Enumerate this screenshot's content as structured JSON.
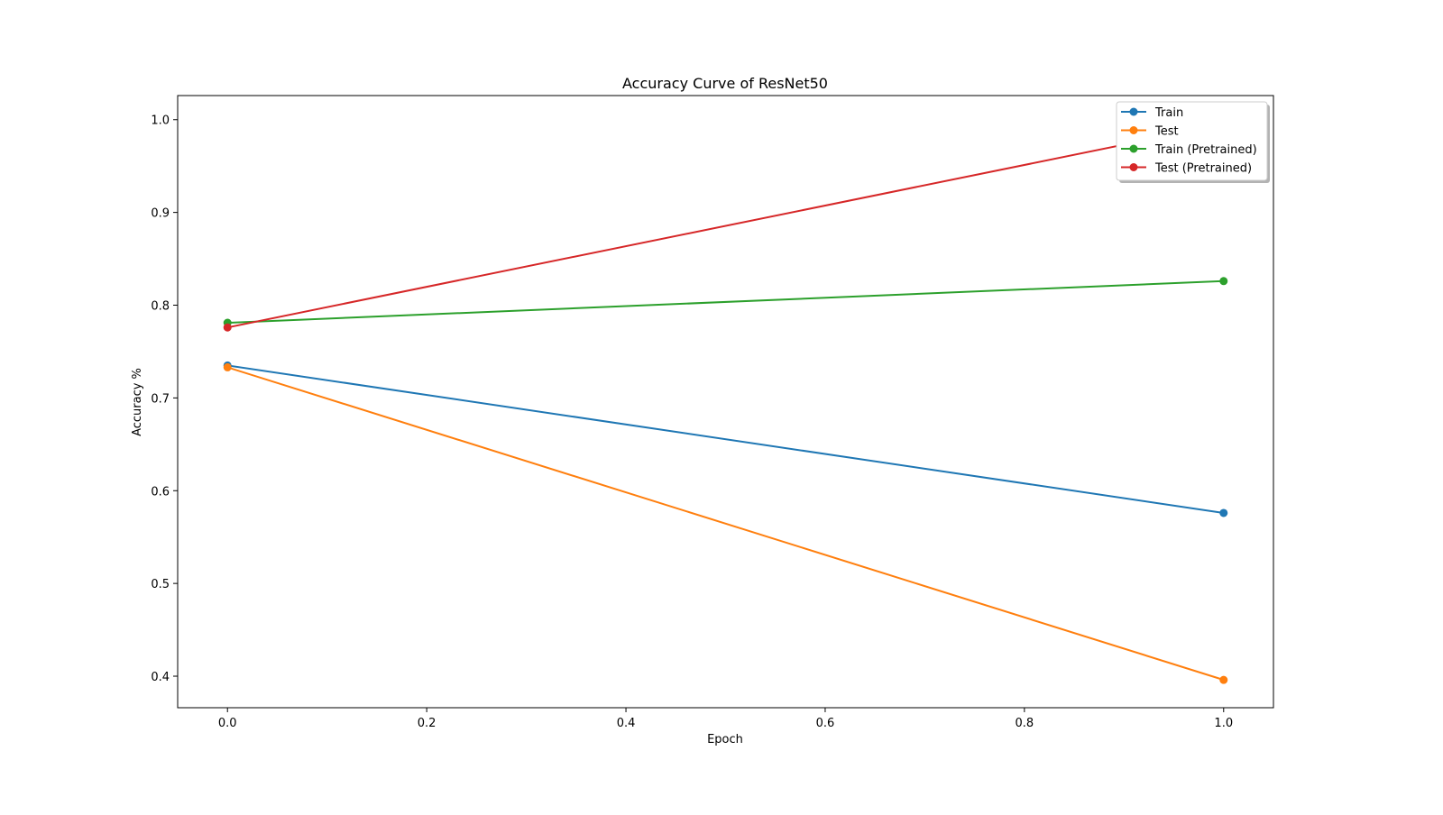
{
  "chart_data": {
    "type": "line",
    "title": "Accuracy Curve of ResNet50",
    "xlabel": "Epoch",
    "ylabel": "Accuracy %",
    "xlim": [
      -0.05,
      1.05
    ],
    "ylim": [
      0.366,
      1.026
    ],
    "x_ticks": [
      "0.0",
      "0.2",
      "0.4",
      "0.6",
      "0.8",
      "1.0"
    ],
    "y_ticks": [
      "0.4",
      "0.5",
      "0.6",
      "0.7",
      "0.8",
      "0.9",
      "1.0"
    ],
    "grid": false,
    "legend_position": "top-right",
    "x": [
      0,
      1
    ],
    "series": [
      {
        "name": "Train",
        "color": "#1f77b4",
        "values": [
          0.735,
          0.576
        ]
      },
      {
        "name": "Test",
        "color": "#ff7f0e",
        "values": [
          0.733,
          0.396
        ]
      },
      {
        "name": "Train (Pretrained)",
        "color": "#2ca02c",
        "values": [
          0.781,
          0.826
        ]
      },
      {
        "name": "Test (Pretrained)",
        "color": "#d62728",
        "values": [
          0.776,
          0.995
        ]
      }
    ]
  }
}
